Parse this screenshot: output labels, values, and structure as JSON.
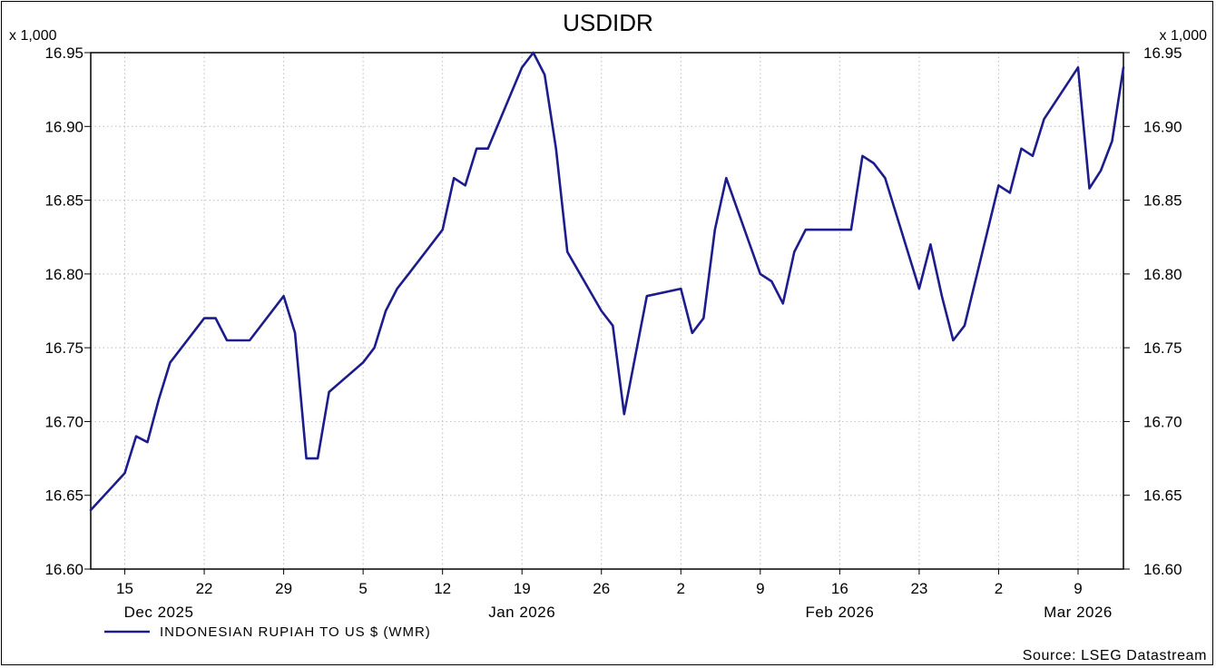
{
  "chart_data": {
    "type": "line",
    "title": "USDIDR",
    "unit_left": "x 1,000",
    "unit_right": "x 1,000",
    "source": "Source: LSEG Datastream",
    "ylim": [
      16.6,
      16.95
    ],
    "yticks": [
      "16.95",
      "16.90",
      "16.85",
      "16.80",
      "16.75",
      "16.70",
      "16.65",
      "16.60"
    ],
    "grid": true,
    "legend_position": "bottom-left",
    "day_ticks": [
      {
        "label": "15",
        "date": "2025-12-15"
      },
      {
        "label": "22",
        "date": "2025-12-22"
      },
      {
        "label": "29",
        "date": "2025-12-29"
      },
      {
        "label": "5",
        "date": "2026-01-05"
      },
      {
        "label": "12",
        "date": "2026-01-12"
      },
      {
        "label": "19",
        "date": "2026-01-19"
      },
      {
        "label": "26",
        "date": "2026-01-26"
      },
      {
        "label": "2",
        "date": "2026-02-02"
      },
      {
        "label": "9",
        "date": "2026-02-09"
      },
      {
        "label": "16",
        "date": "2026-02-16"
      },
      {
        "label": "23",
        "date": "2026-02-23"
      },
      {
        "label": "2",
        "date": "2026-03-02"
      },
      {
        "label": "9",
        "date": "2026-03-09"
      }
    ],
    "month_labels": [
      {
        "label": "Dec 2025",
        "date": "2025-12-18"
      },
      {
        "label": "Jan 2026",
        "date": "2026-01-19"
      },
      {
        "label": "Feb 2026",
        "date": "2026-02-16"
      },
      {
        "label": "Mar 2026",
        "date": "2026-03-09"
      }
    ],
    "series": [
      {
        "name": "INDONESIAN RUPIAH TO US $ (WMR)",
        "color": "#1c1c8c",
        "points": [
          [
            "2025-12-12",
            16.64
          ],
          [
            "2025-12-15",
            16.665
          ],
          [
            "2025-12-16",
            16.69
          ],
          [
            "2025-12-17",
            16.686
          ],
          [
            "2025-12-18",
            16.715
          ],
          [
            "2025-12-19",
            16.74
          ],
          [
            "2025-12-22",
            16.77
          ],
          [
            "2025-12-23",
            16.77
          ],
          [
            "2025-12-24",
            16.755
          ],
          [
            "2025-12-25",
            16.755
          ],
          [
            "2025-12-26",
            16.755
          ],
          [
            "2025-12-29",
            16.785
          ],
          [
            "2025-12-30",
            16.76
          ],
          [
            "2025-12-31",
            16.675
          ],
          [
            "2026-01-01",
            16.675
          ],
          [
            "2026-01-02",
            16.72
          ],
          [
            "2026-01-05",
            16.74
          ],
          [
            "2026-01-06",
            16.75
          ],
          [
            "2026-01-07",
            16.775
          ],
          [
            "2026-01-08",
            16.79
          ],
          [
            "2026-01-09",
            16.8
          ],
          [
            "2026-01-12",
            16.83
          ],
          [
            "2026-01-13",
            16.865
          ],
          [
            "2026-01-14",
            16.86
          ],
          [
            "2026-01-15",
            16.885
          ],
          [
            "2026-01-16",
            16.885
          ],
          [
            "2026-01-19",
            16.94
          ],
          [
            "2026-01-20",
            16.95
          ],
          [
            "2026-01-21",
            16.935
          ],
          [
            "2026-01-22",
            16.885
          ],
          [
            "2026-01-23",
            16.815
          ],
          [
            "2026-01-26",
            16.775
          ],
          [
            "2026-01-27",
            16.765
          ],
          [
            "2026-01-28",
            16.705
          ],
          [
            "2026-01-29",
            16.745
          ],
          [
            "2026-01-30",
            16.785
          ],
          [
            "2026-02-02",
            16.79
          ],
          [
            "2026-02-03",
            16.76
          ],
          [
            "2026-02-04",
            16.77
          ],
          [
            "2026-02-05",
            16.83
          ],
          [
            "2026-02-06",
            16.865
          ],
          [
            "2026-02-09",
            16.8
          ],
          [
            "2026-02-10",
            16.795
          ],
          [
            "2026-02-11",
            16.78
          ],
          [
            "2026-02-12",
            16.815
          ],
          [
            "2026-02-13",
            16.83
          ],
          [
            "2026-02-16",
            16.83
          ],
          [
            "2026-02-17",
            16.83
          ],
          [
            "2026-02-18",
            16.88
          ],
          [
            "2026-02-19",
            16.875
          ],
          [
            "2026-02-20",
            16.865
          ],
          [
            "2026-02-23",
            16.79
          ],
          [
            "2026-02-24",
            16.82
          ],
          [
            "2026-02-25",
            16.785
          ],
          [
            "2026-02-26",
            16.755
          ],
          [
            "2026-02-27",
            16.765
          ],
          [
            "2026-03-02",
            16.86
          ],
          [
            "2026-03-03",
            16.855
          ],
          [
            "2026-03-04",
            16.885
          ],
          [
            "2026-03-05",
            16.88
          ],
          [
            "2026-03-06",
            16.905
          ],
          [
            "2026-03-09",
            16.94
          ],
          [
            "2026-03-10",
            16.858
          ],
          [
            "2026-03-11",
            16.87
          ],
          [
            "2026-03-12",
            16.89
          ],
          [
            "2026-03-13",
            16.94
          ]
        ]
      }
    ]
  }
}
